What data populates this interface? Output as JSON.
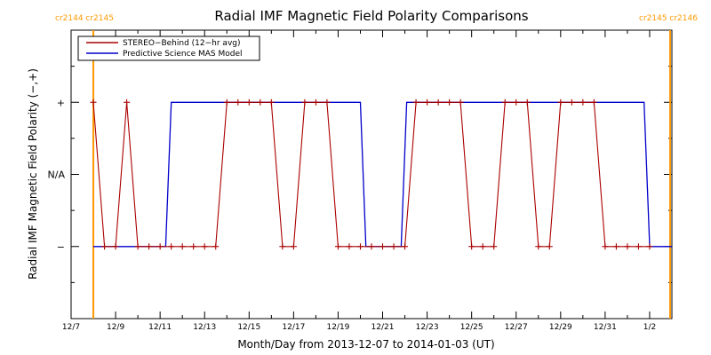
{
  "chart_data": {
    "type": "line",
    "title": "Radial IMF Magnetic Field Polarity Comparisons",
    "xlabel": "Month/Day from 2013-12-07 to 2014-01-03 (UT)",
    "ylabel": "Radial IMF Magnetic Field Polarity (−,+)",
    "x_range": [
      "2013-12-07",
      "2014-01-03"
    ],
    "x_tick_labels": [
      "12/7",
      "12/9",
      "12/11",
      "12/13",
      "12/15",
      "12/17",
      "12/19",
      "12/21",
      "12/23",
      "12/25",
      "12/27",
      "12/29",
      "12/31",
      "1/2"
    ],
    "y_levels": [
      -1,
      0,
      1
    ],
    "y_tick_labels": [
      "−",
      "N/A",
      "+"
    ],
    "ylim": [
      -2,
      2
    ],
    "carrington": [
      {
        "date": "2013-12-08",
        "label": "cr2144 cr2145"
      },
      {
        "date": "2014-01-03",
        "label": "cr2145 cr2146"
      }
    ],
    "series": [
      {
        "name": "STEREO−Behind (12−hr avg)",
        "color": "#aa0000",
        "points": [
          [
            "2013-12-08T00:00",
            1
          ],
          [
            "2013-12-08T12:00",
            -1
          ],
          [
            "2013-12-09T00:00",
            -1
          ],
          [
            "2013-12-09T12:00",
            1
          ],
          [
            "2013-12-10T00:00",
            -1
          ],
          [
            "2013-12-10T12:00",
            -1
          ],
          [
            "2013-12-11T00:00",
            -1
          ],
          [
            "2013-12-11T12:00",
            -1
          ],
          [
            "2013-12-12T00:00",
            -1
          ],
          [
            "2013-12-12T12:00",
            -1
          ],
          [
            "2013-12-13T00:00",
            -1
          ],
          [
            "2013-12-13T12:00",
            -1
          ],
          [
            "2013-12-14T00:00",
            1
          ],
          [
            "2013-12-14T12:00",
            1
          ],
          [
            "2013-12-15T00:00",
            1
          ],
          [
            "2013-12-15T12:00",
            1
          ],
          [
            "2013-12-16T00:00",
            1
          ],
          [
            "2013-12-16T12:00",
            -1
          ],
          [
            "2013-12-17T00:00",
            -1
          ],
          [
            "2013-12-17T12:00",
            1
          ],
          [
            "2013-12-18T00:00",
            1
          ],
          [
            "2013-12-18T12:00",
            1
          ],
          [
            "2013-12-19T00:00",
            -1
          ],
          [
            "2013-12-19T12:00",
            -1
          ],
          [
            "2013-12-20T00:00",
            -1
          ],
          [
            "2013-12-20T12:00",
            -1
          ],
          [
            "2013-12-21T00:00",
            -1
          ],
          [
            "2013-12-21T12:00",
            -1
          ],
          [
            "2013-12-22T00:00",
            -1
          ],
          [
            "2013-12-22T12:00",
            1
          ],
          [
            "2013-12-23T00:00",
            1
          ],
          [
            "2013-12-23T12:00",
            1
          ],
          [
            "2013-12-24T00:00",
            1
          ],
          [
            "2013-12-24T12:00",
            1
          ],
          [
            "2013-12-25T00:00",
            -1
          ],
          [
            "2013-12-25T12:00",
            -1
          ],
          [
            "2013-12-26T00:00",
            -1
          ],
          [
            "2013-12-26T12:00",
            1
          ],
          [
            "2013-12-27T00:00",
            1
          ],
          [
            "2013-12-27T12:00",
            1
          ],
          [
            "2013-12-28T00:00",
            -1
          ],
          [
            "2013-12-28T12:00",
            -1
          ],
          [
            "2013-12-29T00:00",
            1
          ],
          [
            "2013-12-29T12:00",
            1
          ],
          [
            "2013-12-30T00:00",
            1
          ],
          [
            "2013-12-30T12:00",
            1
          ],
          [
            "2013-12-31T00:00",
            -1
          ],
          [
            "2013-12-31T12:00",
            -1
          ],
          [
            "2014-01-01T00:00",
            -1
          ],
          [
            "2014-01-01T12:00",
            -1
          ],
          [
            "2014-01-02T00:00",
            -1
          ]
        ]
      },
      {
        "name": "Predictive Science MAS Model",
        "color": "#0000cc",
        "points": [
          [
            "2013-12-08T00:00",
            -1
          ],
          [
            "2013-12-11T06:00",
            -1
          ],
          [
            "2013-12-11T12:00",
            1
          ],
          [
            "2013-12-20T00:00",
            1
          ],
          [
            "2013-12-20T06:00",
            -1
          ],
          [
            "2013-12-21T20:00",
            -1
          ],
          [
            "2013-12-22T02:00",
            1
          ],
          [
            "2014-01-01T18:00",
            1
          ],
          [
            "2014-01-02T00:00",
            -1
          ],
          [
            "2014-01-03T06:00",
            -1
          ]
        ]
      }
    ],
    "legend_position": "top-left"
  }
}
